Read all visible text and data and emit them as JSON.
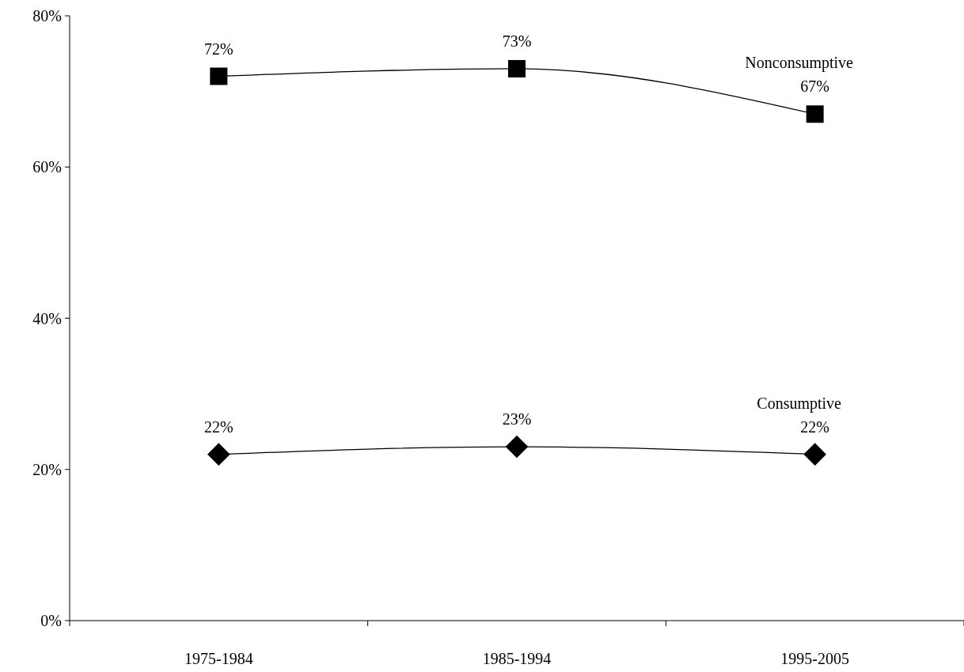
{
  "chart_data": {
    "type": "line",
    "categories": [
      "1975-1984",
      "1985-1994",
      "1995-2005"
    ],
    "series": [
      {
        "name": "Nonconsumptive",
        "color": "#000000",
        "marker": "square",
        "values": [
          72,
          73,
          67
        ],
        "value_labels": [
          "72%",
          "73%",
          "67%"
        ]
      },
      {
        "name": "Consumptive",
        "color": "#000000",
        "marker": "diamond",
        "values": [
          22,
          23,
          22
        ],
        "value_labels": [
          "22%",
          "23%",
          "22%"
        ]
      }
    ],
    "ylim": [
      0,
      80
    ],
    "yticks": [
      {
        "value": 0,
        "label": "0%"
      },
      {
        "value": 20,
        "label": "20%"
      },
      {
        "value": 40,
        "label": "40%"
      },
      {
        "value": 60,
        "label": "60%"
      },
      {
        "value": 80,
        "label": "80%"
      }
    ],
    "grid": false
  }
}
